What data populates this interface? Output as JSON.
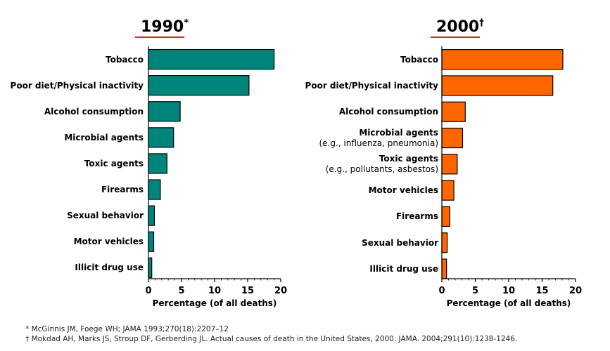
{
  "chart_data": [
    {
      "type": "bar",
      "orientation": "horizontal",
      "title": "1990",
      "title_mark": "*",
      "categories": [
        {
          "label": "Tobacco"
        },
        {
          "label": "Poor diet/Physical inactivity"
        },
        {
          "label": "Alcohol consumption"
        },
        {
          "label": "Microbial agents"
        },
        {
          "label": "Toxic agents"
        },
        {
          "label": "Firearms"
        },
        {
          "label": "Sexual behavior"
        },
        {
          "label": "Motor vehicles"
        },
        {
          "label": "Illicit drug use"
        }
      ],
      "values": [
        19,
        15.2,
        4.8,
        3.8,
        2.8,
        1.8,
        0.9,
        0.8,
        0.5
      ],
      "xlabel": "Percentage (of all deaths)",
      "xlim": [
        0,
        20
      ],
      "xticks": [
        "0",
        "5",
        "10",
        "15",
        "20"
      ],
      "bar_color": "#00857a",
      "grid": false
    },
    {
      "type": "bar",
      "orientation": "horizontal",
      "title": "2000",
      "title_mark": "†",
      "categories": [
        {
          "label": "Tobacco"
        },
        {
          "label": "Poor diet/Physical inactivity"
        },
        {
          "label": "Alcohol consumption"
        },
        {
          "label": "Microbial agents",
          "sublabel": "(e.g., influenza, pneumonia)"
        },
        {
          "label": "Toxic agents",
          "sublabel": "(e.g., pollutants, asbestos)"
        },
        {
          "label": "Motor vehicles"
        },
        {
          "label": "Firearms"
        },
        {
          "label": "Sexual behavior"
        },
        {
          "label": "Illicit drug use"
        }
      ],
      "values": [
        18.1,
        16.6,
        3.5,
        3.1,
        2.3,
        1.8,
        1.2,
        0.8,
        0.7
      ],
      "xlabel": "Percentage (of all deaths)",
      "xlim": [
        0,
        20
      ],
      "xticks": [
        "0",
        "5",
        "10",
        "15",
        "20"
      ],
      "bar_color": "#ff6600",
      "grid": false
    }
  ],
  "footnotes": [
    "* McGinnis JM, Foege WH; JAMA 1993;270(18):2207–12",
    "† Mokdad AH, Marks JS, Stroup DF, Gerberding JL.  Actual causes of death in the United States, 2000. JAMA. 2004;291(10):1238-1246."
  ],
  "colors": {
    "title_underline": "#e0202a",
    "bar_stroke": "#000000"
  }
}
